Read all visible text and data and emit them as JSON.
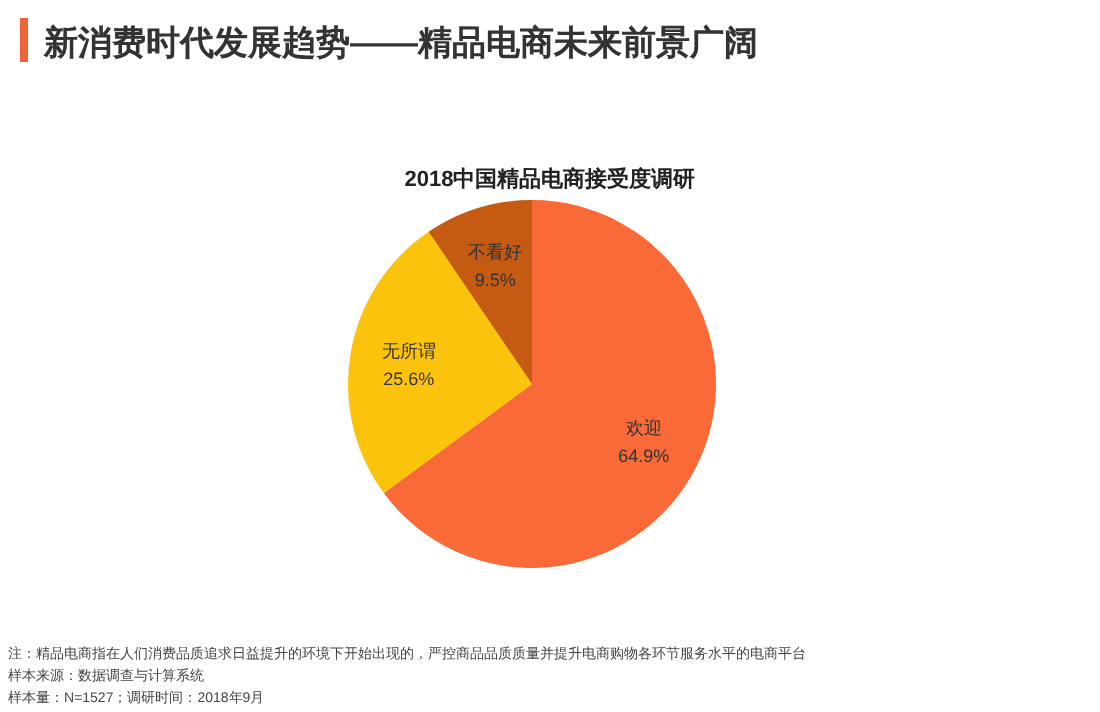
{
  "chart_data": {
    "type": "pie",
    "title": "新消费时代发展趋势——精品电商未来前景广阔",
    "subtitle": "2018中国精品电商接受度调研",
    "categories": [
      "欢迎",
      "无所谓",
      "不看好"
    ],
    "values": [
      64.9,
      25.6,
      9.5
    ],
    "colors": [
      "#f96a38",
      "#fcc30d",
      "#c55a12"
    ],
    "value_labels": [
      "64.9%",
      "25.6%",
      "9.5%"
    ],
    "annotations": [
      "注：精品电商指在人们消费品质追求日益提升的环境下开始出现的，严控商品品质质量并提升电商购物各环节服务水平的电商平台",
      "样本来源：数据调查与计算系统",
      "样本量：N=1527；调研时间：2018年9月"
    ]
  }
}
